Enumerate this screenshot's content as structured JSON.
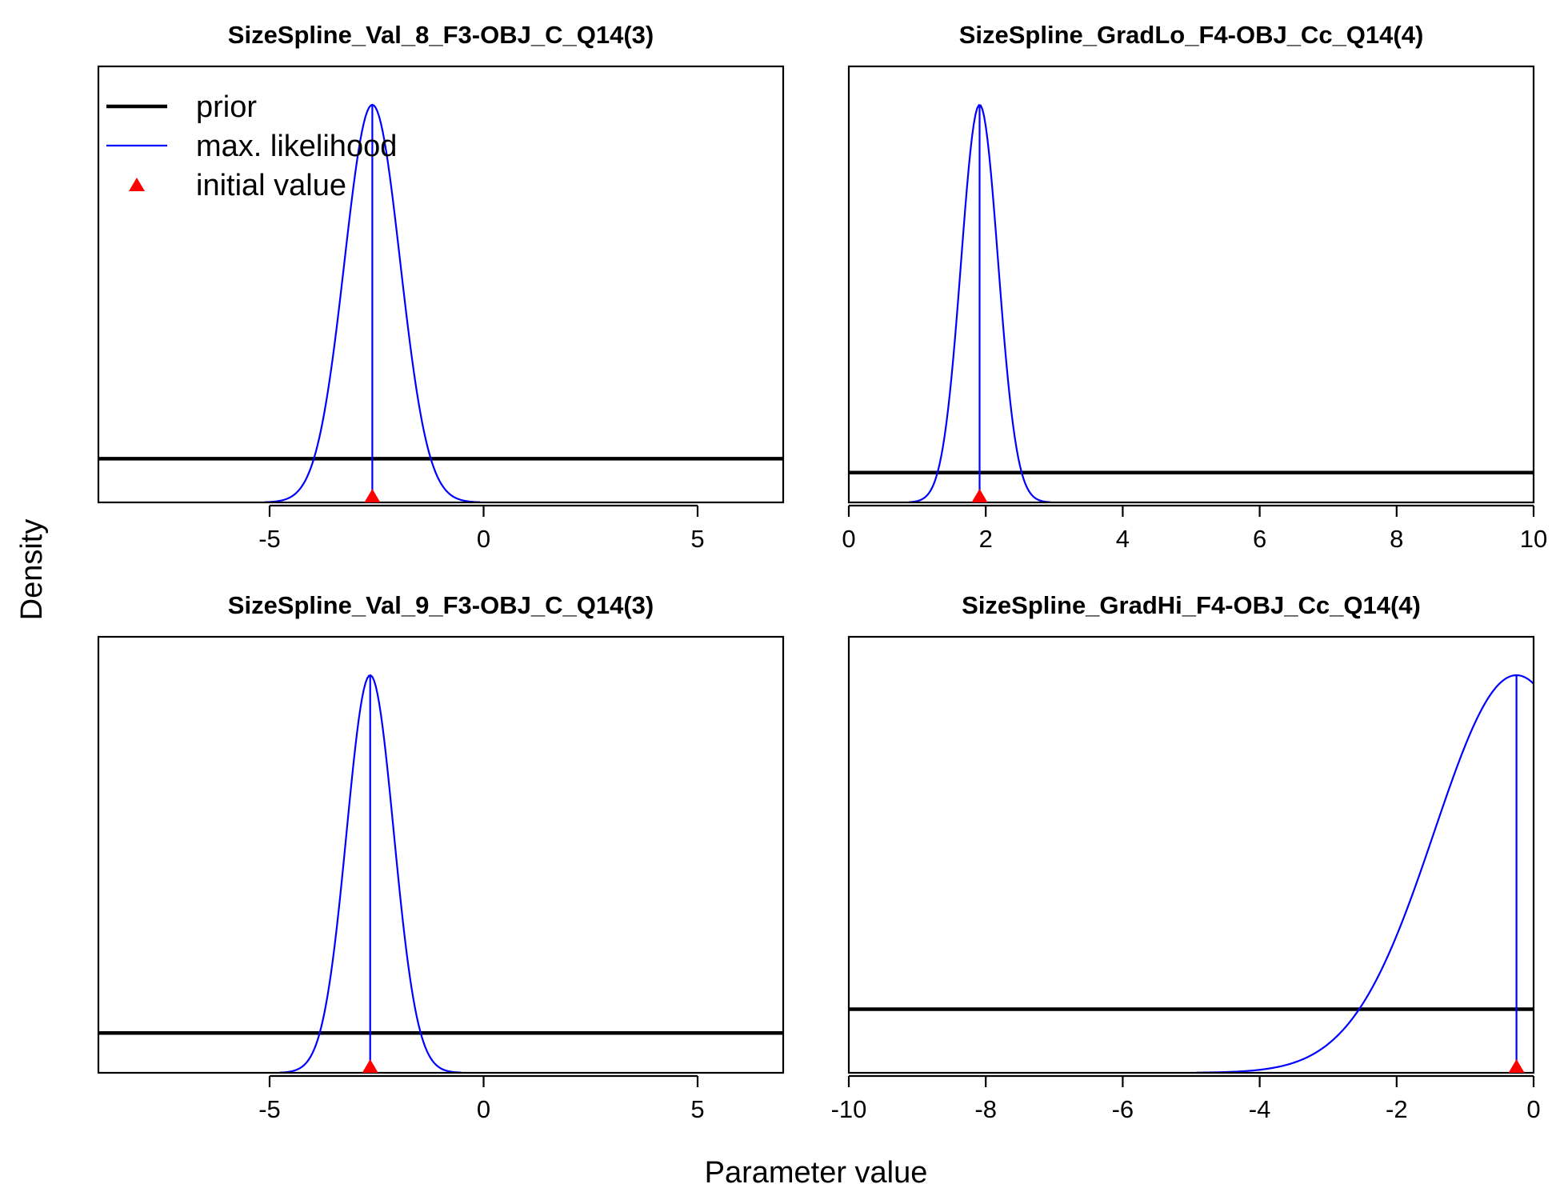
{
  "figure": {
    "ylabel": "Density",
    "xlabel": "Parameter value"
  },
  "legend": {
    "placement": "top-left of first panel",
    "entries": [
      {
        "label": "prior",
        "color": "#000000",
        "kind": "thick-line"
      },
      {
        "label": "max. likelihood",
        "color": "#0000ff",
        "kind": "thin-line"
      },
      {
        "label": "initial value",
        "color": "#ff0000",
        "kind": "triangle"
      }
    ]
  },
  "colors": {
    "prior": "#000000",
    "mle": "#0000ff",
    "initial": "#ff0000",
    "axis": "#000000"
  },
  "chart_data": [
    {
      "type": "line",
      "title": "SizeSpline_Val_8_F3-OBJ_C_Q14(3)",
      "xlim": [
        -9,
        7
      ],
      "xticks": [
        -5,
        0,
        5
      ],
      "xtick_labels": [
        "-5",
        "0",
        "5"
      ],
      "prior_level": 0.11,
      "mle": {
        "center": -2.6,
        "sd": 0.65
      },
      "initial_value": -2.6,
      "grid": false
    },
    {
      "type": "line",
      "title": "SizeSpline_GradLo_F4-OBJ_Cc_Q14(4)",
      "xlim": [
        0,
        10
      ],
      "xticks": [
        0,
        2,
        4,
        6,
        8,
        10
      ],
      "xtick_labels": [
        "0",
        "2",
        "4",
        "6",
        "8",
        "10"
      ],
      "prior_level": 0.075,
      "mle": {
        "center": 1.91,
        "sd": 0.27
      },
      "initial_value": 1.91,
      "grid": false
    },
    {
      "type": "line",
      "title": "SizeSpline_Val_9_F3-OBJ_C_Q14(3)",
      "xlim": [
        -9,
        7
      ],
      "xticks": [
        -5,
        0,
        5
      ],
      "xtick_labels": [
        "-5",
        "0",
        "5"
      ],
      "prior_level": 0.1,
      "mle": {
        "center": -2.65,
        "sd": 0.55
      },
      "initial_value": -2.65,
      "grid": false
    },
    {
      "type": "line",
      "title": "SizeSpline_GradHi_F4-OBJ_Cc_Q14(4)",
      "xlim": [
        -10,
        0
      ],
      "xticks": [
        -10,
        -8,
        -6,
        -4,
        -2,
        0
      ],
      "xtick_labels": [
        "-10",
        "-8",
        "-6",
        "-4",
        "-2",
        "0"
      ],
      "prior_level": 0.16,
      "mle": {
        "center": -0.25,
        "sd": 1.2
      },
      "initial_value": -0.25,
      "grid": false
    }
  ]
}
